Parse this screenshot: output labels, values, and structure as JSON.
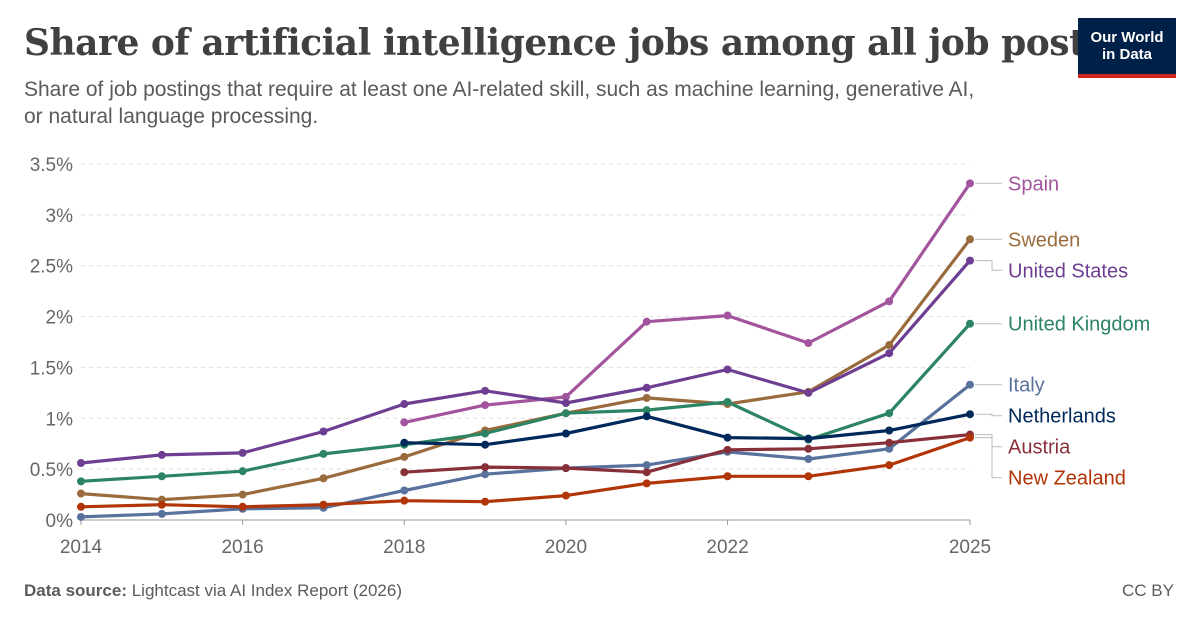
{
  "header": {
    "title": "Share of artificial intelligence jobs among all job postings",
    "subtitle": "Share of job postings that require at least one AI-related skill, such as machine learning, generative AI, or natural language processing.",
    "logo_line1": "Our World",
    "logo_line2": "in Data"
  },
  "footer": {
    "source_label": "Data source:",
    "source_text": "Lightcast via AI Index Report (2026)",
    "license": "CC BY"
  },
  "chart_data": {
    "type": "line",
    "title": "Share of artificial intelligence jobs among all job postings",
    "xlim": [
      2014,
      2025
    ],
    "ylim": [
      0,
      3.5
    ],
    "x_ticks": [
      2014,
      2016,
      2018,
      2020,
      2022,
      2025
    ],
    "x_tick_labels": [
      "2014",
      "2016",
      "2018",
      "2020",
      "2022",
      "2025"
    ],
    "y_ticks": [
      0,
      0.5,
      1,
      1.5,
      2,
      2.5,
      3,
      3.5
    ],
    "y_tick_labels": [
      "0%",
      "0.5%",
      "1%",
      "1.5%",
      "2%",
      "2.5%",
      "3%",
      "3.5%"
    ],
    "grid": true,
    "legend": "inline labels at right end of lines",
    "series": [
      {
        "name": "Spain",
        "color": "#a2559c",
        "x": [
          2018,
          2019,
          2020,
          2021,
          2022,
          2023,
          2024,
          2025
        ],
        "y": [
          0.96,
          1.13,
          1.21,
          1.95,
          2.01,
          1.74,
          2.15,
          3.31
        ]
      },
      {
        "name": "Sweden",
        "color": "#9a6c3d",
        "x": [
          2014,
          2015,
          2016,
          2017,
          2018,
          2019,
          2020,
          2021,
          2022,
          2023,
          2024,
          2025
        ],
        "y": [
          0.26,
          0.2,
          0.25,
          0.41,
          0.62,
          0.88,
          1.05,
          1.2,
          1.14,
          1.26,
          1.72,
          2.76
        ]
      },
      {
        "name": "United States",
        "color": "#6d3e91",
        "x": [
          2014,
          2015,
          2016,
          2017,
          2018,
          2019,
          2020,
          2021,
          2022,
          2023,
          2024,
          2025
        ],
        "y": [
          0.56,
          0.64,
          0.66,
          0.87,
          1.14,
          1.27,
          1.15,
          1.3,
          1.48,
          1.25,
          1.64,
          2.55
        ]
      },
      {
        "name": "United Kingdom",
        "color": "#2c8465",
        "x": [
          2014,
          2015,
          2016,
          2017,
          2018,
          2019,
          2020,
          2021,
          2022,
          2023,
          2024,
          2025
        ],
        "y": [
          0.38,
          0.43,
          0.48,
          0.65,
          0.74,
          0.85,
          1.05,
          1.08,
          1.16,
          0.79,
          1.05,
          1.93
        ]
      },
      {
        "name": "Italy",
        "color": "#58719d",
        "x": [
          2014,
          2015,
          2016,
          2017,
          2018,
          2019,
          2020,
          2021,
          2022,
          2023,
          2024,
          2025
        ],
        "y": [
          0.03,
          0.06,
          0.11,
          0.12,
          0.29,
          0.45,
          0.51,
          0.54,
          0.67,
          0.6,
          0.7,
          1.33
        ]
      },
      {
        "name": "Netherlands",
        "color": "#00295b",
        "x": [
          2018,
          2019,
          2020,
          2021,
          2022,
          2023,
          2024,
          2025
        ],
        "y": [
          0.76,
          0.74,
          0.85,
          1.02,
          0.81,
          0.8,
          0.88,
          1.04
        ]
      },
      {
        "name": "Austria",
        "color": "#883039",
        "x": [
          2018,
          2019,
          2020,
          2021,
          2022,
          2023,
          2024,
          2025
        ],
        "y": [
          0.47,
          0.52,
          0.51,
          0.47,
          0.69,
          0.7,
          0.76,
          0.84
        ]
      },
      {
        "name": "New Zealand",
        "color": "#b13507",
        "x": [
          2014,
          2015,
          2016,
          2017,
          2018,
          2019,
          2020,
          2021,
          2022,
          2023,
          2024,
          2025
        ],
        "y": [
          0.13,
          0.15,
          0.13,
          0.15,
          0.19,
          0.18,
          0.24,
          0.36,
          0.43,
          0.43,
          0.54,
          0.81
        ]
      }
    ]
  }
}
